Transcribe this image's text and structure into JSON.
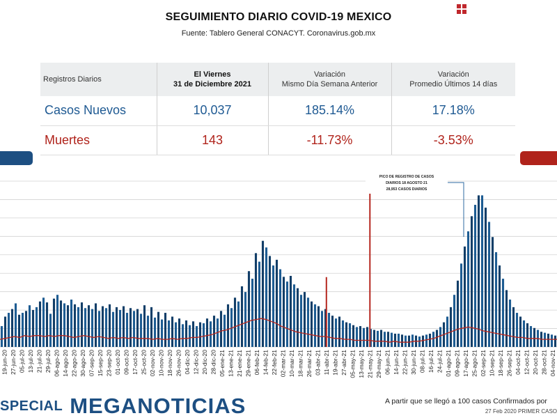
{
  "header": {
    "title": "SEGUIMIENTO DIARIO COVID-19 MEXICO",
    "subtitle": "Fuente: Tablero General CONACYT. Coronavirus.gob.mx"
  },
  "table": {
    "col0": "Registros Diarios",
    "col1_line1": "El Viernes",
    "col1_line2": "31 de Diciembre 2021",
    "col2_line1": "Variación",
    "col2_line2": "Mismo Día Semana Anterior",
    "col3_line1": "Variación",
    "col3_line2": "Promedio Últimos 14 días",
    "rows": [
      {
        "label": "Casos Nuevos",
        "value": "10,037",
        "var_week": "185.14%",
        "var_14d": "17.18%"
      },
      {
        "label": "Muertes",
        "value": "143",
        "var_week": "-11.73%",
        "var_14d": "-3.53%"
      }
    ]
  },
  "chart_data": {
    "type": "bar",
    "series": [
      {
        "values": [
          22,
          32,
          36,
          40,
          46,
          34,
          36,
          38,
          44,
          39,
          42,
          48,
          52,
          47,
          35,
          51,
          55,
          49,
          46,
          44,
          50,
          45,
          42,
          47,
          41,
          44,
          40,
          46,
          38,
          43,
          41,
          45,
          37,
          42,
          39,
          43,
          36,
          41,
          38,
          40,
          35,
          44,
          33,
          42,
          31,
          37,
          29,
          36,
          28,
          32,
          26,
          30,
          24,
          28,
          23,
          27,
          22,
          26,
          25,
          30,
          27,
          33,
          30,
          38,
          34,
          45,
          41,
          52,
          48,
          64,
          58,
          80,
          72,
          99,
          90,
          112,
          105,
          96,
          86,
          92,
          82,
          74,
          69,
          75,
          66,
          62,
          55,
          58,
          52,
          48,
          45,
          43,
          38,
          40,
          36,
          33,
          30,
          32,
          28,
          26,
          25,
          23,
          21,
          22,
          20,
          21,
          19,
          18,
          17,
          18,
          16,
          16,
          15,
          14,
          14,
          13,
          12,
          12,
          13,
          12,
          11,
          12,
          13,
          14,
          16,
          18,
          21,
          26,
          32,
          42,
          55,
          70,
          88,
          106,
          122,
          138,
          150,
          160,
          160,
          147,
          132,
          116,
          100,
          86,
          72,
          60,
          50,
          42,
          36,
          32,
          28,
          25,
          22,
          20,
          18,
          16,
          15,
          14,
          13,
          12
        ]
      },
      {
        "values": [
          8,
          9,
          10,
          11,
          10,
          12,
          11,
          12,
          12,
          11,
          12,
          11,
          12,
          12,
          11,
          10,
          11,
          12,
          11,
          10,
          11,
          10,
          9,
          10,
          9,
          10,
          9,
          10,
          9,
          9,
          9,
          8,
          9,
          8,
          8,
          9,
          8,
          9,
          9,
          10,
          10,
          11,
          12,
          13,
          15,
          17,
          18,
          20,
          22,
          24,
          26,
          28,
          29,
          30,
          29,
          27,
          25,
          22,
          20,
          18,
          16,
          15,
          14,
          13,
          12,
          11,
          11,
          10,
          9,
          9,
          8,
          8,
          7,
          7,
          7,
          7,
          6,
          6,
          6,
          5,
          6,
          5,
          5,
          5,
          6,
          6,
          7,
          8,
          9,
          11,
          13,
          15,
          17,
          19,
          20,
          21,
          20,
          19,
          17,
          16,
          15,
          14,
          13,
          12,
          11,
          10,
          10,
          9,
          9,
          9,
          8,
          8,
          8,
          8
        ]
      }
    ],
    "spikes": [
      {
        "label": "11-abr-21",
        "value": 118
      },
      {
        "label": "21-may-21",
        "value": 280
      }
    ],
    "annotation": {
      "line1": "PICO DE REGISTRO DE CASOS",
      "line2": "DIARIOS 18 AGOSTO 21",
      "line3": "28,953 CASOS DIARIOS"
    },
    "x_tick_labels": [
      "19-jun-20",
      "27-jun-20",
      "05-jul-20",
      "13-jul-20",
      "21-jul-20",
      "29-jul-20",
      "06-ago-20",
      "14-ago-20",
      "22-ago-20",
      "30-ago-20",
      "07-sep-20",
      "15-sep-20",
      "23-sep-20",
      "01-oct-20",
      "09-oct-20",
      "17-oct-20",
      "25-oct-20",
      "02-nov-20",
      "10-nov-20",
      "18-nov-20",
      "26-nov-20",
      "04-dic-20",
      "12-dic-20",
      "20-dic-20",
      "28-dic-20",
      "05-ene-21",
      "13-ene-21",
      "21-ene-21",
      "29-ene-21",
      "06-feb-21",
      "14-feb-21",
      "22-feb-21",
      "02-mar-21",
      "10-mar-21",
      "18-mar-21",
      "26-mar-21",
      "03-abr-21",
      "11-abr-21",
      "19-abr-21",
      "27-abr-21",
      "05-may-21",
      "13-may-21",
      "21-may-21",
      "29-may-21",
      "06-jun-21",
      "14-jun-21",
      "22-jun-21",
      "30-jun-21",
      "08-jul-21",
      "16-jul-21",
      "24-jul-21",
      "01-ago-21",
      "09-ago-21",
      "17-ago-21",
      "25-ago-21",
      "02-sep-21",
      "10-sep-21",
      "18-sep-21",
      "26-sep-21",
      "04-oct-21",
      "12-oct-21",
      "20-oct-21",
      "28-oct-21",
      "04-nov-21"
    ],
    "colors": {
      "cases": "#1d5c92",
      "cases_dark": "#123e68",
      "deaths": "#b5261e",
      "grid": "#d2d2d2"
    },
    "grid": true
  },
  "footer": {
    "special": "SPECIAL",
    "brand": "MEGANOTICIAS",
    "note": "A partir que se llegó a 100 casos Confirmados por",
    "date": "27 Feb 2020 PRIMER CASO"
  }
}
